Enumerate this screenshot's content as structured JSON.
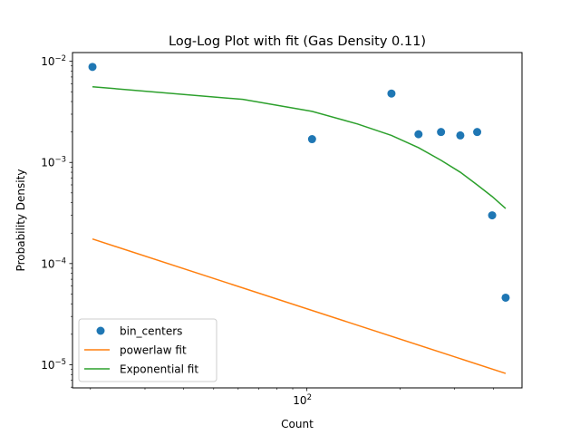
{
  "chart_data": {
    "type": "scatter",
    "title": "Log-Log Plot with fit (Gas Density 0.11)",
    "xlabel": "Count",
    "ylabel": "Probability Density",
    "xscale": "log",
    "yscale": "log",
    "xlim": [
      17.5,
      495
    ],
    "ylim": [
      5.9e-06,
      0.0122
    ],
    "grid": false,
    "legend_position": "lower-left",
    "x_major_ticks": [
      {
        "value": 100,
        "base": "10",
        "exp": "2"
      }
    ],
    "y_major_ticks": [
      {
        "value": 1e-05,
        "base": "10",
        "exp": "−5"
      },
      {
        "value": 0.0001,
        "base": "10",
        "exp": "−4"
      },
      {
        "value": 0.001,
        "base": "10",
        "exp": "−3"
      },
      {
        "value": 0.01,
        "base": "10",
        "exp": "−2"
      }
    ],
    "series": [
      {
        "name": "bin_centers",
        "kind": "scatter",
        "color": "#1f77b4",
        "x": [
          20.3,
          103.9,
          187.5,
          229.3,
          271.1,
          312.9,
          354.7,
          396.5,
          438.3
        ],
        "y": [
          0.0088,
          0.0017,
          0.0048,
          0.0019,
          0.002,
          0.00185,
          0.002,
          0.0003,
          4.6e-05
        ]
      },
      {
        "name": "powerlaw fit",
        "kind": "line",
        "color": "#ff7f0e",
        "x": [
          20.3,
          438.3
        ],
        "y": [
          0.000175,
          8.2e-06
        ]
      },
      {
        "name": "Exponential fit",
        "kind": "line",
        "color": "#2ca02c",
        "x": [
          20.3,
          62.1,
          103.9,
          145.7,
          187.5,
          229.3,
          271.1,
          312.9,
          354.7,
          396.5,
          438.3
        ],
        "y": [
          0.0056,
          0.0042,
          0.0032,
          0.0024,
          0.00185,
          0.0014,
          0.00105,
          0.0008,
          0.0006,
          0.00046,
          0.00035
        ]
      }
    ]
  }
}
